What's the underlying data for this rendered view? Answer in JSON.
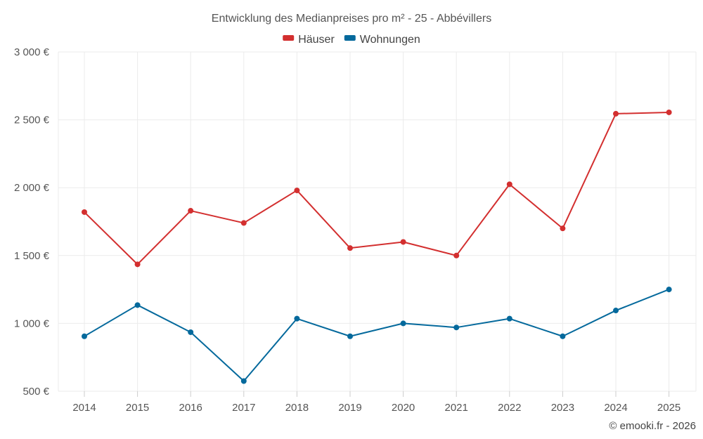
{
  "chart_data": {
    "type": "line",
    "title": "Entwicklung des Medianpreises pro m² - 25 - Abbévillers",
    "categories": [
      "2014",
      "2015",
      "2016",
      "2017",
      "2018",
      "2019",
      "2020",
      "2021",
      "2022",
      "2023",
      "2024",
      "2025"
    ],
    "series": [
      {
        "name": "Häuser",
        "color": "#d32f2f",
        "values": [
          1820,
          1435,
          1830,
          1740,
          1980,
          1555,
          1600,
          1500,
          2025,
          1700,
          2545,
          2555
        ]
      },
      {
        "name": "Wohnungen",
        "color": "#04699c",
        "values": [
          905,
          1135,
          935,
          575,
          1035,
          905,
          1000,
          970,
          1035,
          905,
          1095,
          1250
        ]
      }
    ],
    "ylim": [
      500,
      3000
    ],
    "yticks": [
      500,
      1000,
      1500,
      2000,
      2500,
      3000
    ],
    "ytick_labels": [
      "500 €",
      "1 000 €",
      "1 500 €",
      "2 000 €",
      "2 500 €",
      "3 000 €"
    ],
    "legend_position": "top-center",
    "grid": true,
    "xlabel": "",
    "ylabel": "",
    "credit": "© emooki.fr - 2026"
  }
}
